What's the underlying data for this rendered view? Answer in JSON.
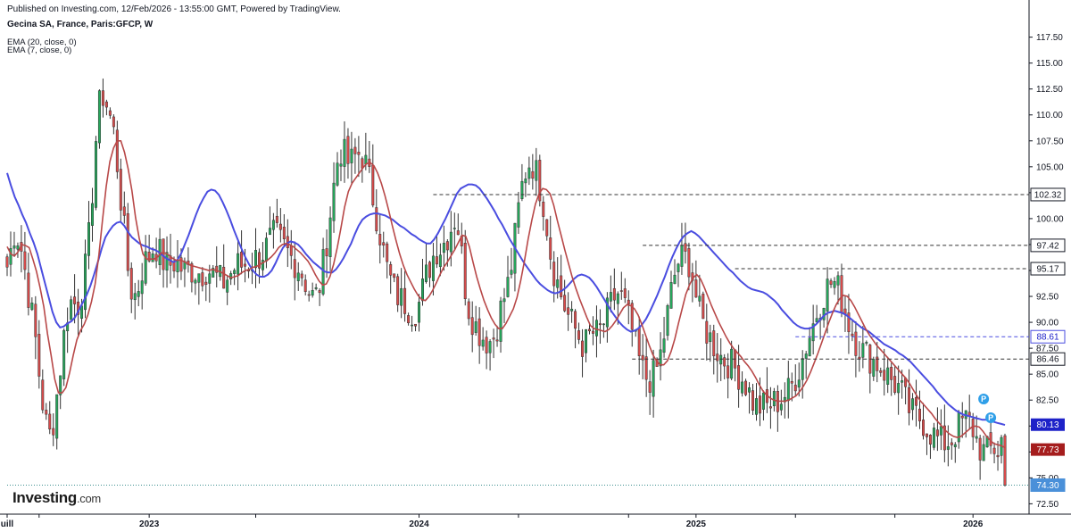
{
  "header": {
    "published": "Published on Investing.com, 12/Feb/2026 - 13:55:00 GMT, Powered by TradingView.",
    "symbol": "Gecina SA, France, Paris:GFCP, W",
    "ema20": "EMA (20, close, 0)",
    "ema7": "EMA (7, close, 0)"
  },
  "logo": {
    "name": "Investing",
    "suffix": ".com"
  },
  "colors": {
    "up": "#26a65b",
    "down": "#d94b4b",
    "ema20": "#4a4de0",
    "ema7": "#b84848",
    "grid": "#d9dce3"
  },
  "chart_data": {
    "type": "candlestick",
    "timeframe": "W",
    "y_axis": {
      "ticks": [
        "117.50",
        "115.00",
        "112.50",
        "110.00",
        "107.50",
        "105.00",
        "102.50",
        "100.00",
        "97.50",
        "95.00",
        "92.50",
        "90.00",
        "87.50",
        "85.00",
        "82.50",
        "80.00",
        "77.50",
        "75.00",
        "72.50"
      ],
      "min": 71.5,
      "max": 118.5
    },
    "x_axis": {
      "ticks": [
        {
          "label": "uill",
          "x": 0
        },
        {
          "label": "",
          "x": 9
        },
        {
          "label": "2023",
          "x": 40
        },
        {
          "label": "",
          "x": 70
        },
        {
          "label": "2024",
          "x": 116
        },
        {
          "label": "",
          "x": 144
        },
        {
          "label": "",
          "x": 175
        },
        {
          "label": "2025",
          "x": 194
        },
        {
          "label": "",
          "x": 222
        },
        {
          "label": "",
          "x": 250
        },
        {
          "label": "2026",
          "x": 272
        }
      ],
      "bars": 282
    },
    "levels": [
      {
        "value": 102.32,
        "label": "102.32",
        "from_bar": 120,
        "style": "dashed"
      },
      {
        "value": 97.42,
        "label": "97.42",
        "from_bar": 179,
        "style": "dashed"
      },
      {
        "value": 95.17,
        "label": "95.17",
        "from_bar": 205,
        "style": "dashed"
      },
      {
        "value": 88.61,
        "label": "88.61",
        "from_bar": 222,
        "style": "dashed-blue"
      },
      {
        "value": 86.46,
        "label": "86.46",
        "from_bar": 176,
        "style": "dashed"
      },
      {
        "value": 74.3,
        "label": "74.30",
        "from_bar": 0,
        "style": "dotted-teal"
      }
    ],
    "badges": [
      {
        "value": 80.13,
        "label": "80.13",
        "color": "#1e22c8"
      },
      {
        "value": 77.73,
        "label": "77.73",
        "color": "#a51d1d"
      }
    ],
    "markers": [
      {
        "label": "P",
        "bar": 275,
        "value": 82.6
      },
      {
        "label": "P",
        "bar": 277,
        "value": 80.8
      }
    ],
    "series": [
      {
        "name": "EMA (20, close, 0)",
        "color": "#4a4de0",
        "values": [
          104.4,
          103.2,
          102.1,
          101.3,
          100.4,
          99.6,
          98.6,
          97.7,
          96.6,
          95.2,
          93.8,
          92.4,
          91.0,
          90.0,
          89.5,
          89.6,
          89.9,
          90.1,
          90.5,
          91.2,
          91.9,
          92.6,
          93.5,
          94.6,
          95.8,
          97.1,
          98.2,
          98.8,
          99.3,
          99.6,
          99.7,
          99.3,
          98.7,
          98.2,
          97.9,
          97.6,
          97.4,
          97.3,
          97.1,
          97.0,
          96.8,
          96.5,
          96.2,
          96.0,
          95.8,
          96.0,
          96.6,
          97.5,
          98.4,
          99.4,
          100.4,
          101.3,
          102.0,
          102.6,
          102.8,
          102.7,
          102.3,
          101.6,
          100.8,
          99.9,
          98.9,
          98.0,
          97.1,
          96.3,
          95.6,
          95.0,
          94.6,
          94.4,
          94.4,
          94.6,
          95.0,
          95.7,
          96.5,
          97.2,
          97.6,
          97.8,
          97.7,
          97.5,
          97.1,
          96.6,
          96.2,
          95.8,
          95.5,
          95.2,
          94.9,
          94.8,
          94.8,
          95.1,
          95.6,
          96.2,
          96.9,
          97.6,
          98.5,
          99.3,
          99.9,
          100.2,
          100.4,
          100.5,
          100.5,
          100.4,
          100.3,
          100.1,
          99.9,
          99.6,
          99.3,
          99.1,
          98.8,
          98.5,
          98.3,
          98.0,
          97.8,
          97.6,
          97.6,
          98.0,
          98.6,
          99.3,
          100.0,
          100.8,
          101.6,
          102.4,
          102.9,
          103.1,
          103.3,
          103.3,
          103.2,
          102.9,
          102.4,
          101.9,
          101.3,
          100.7,
          100.0,
          99.4,
          98.7,
          98.0,
          97.4,
          96.8,
          96.2,
          95.6,
          95.1,
          94.6,
          94.1,
          93.7,
          93.4,
          93.1,
          92.9,
          92.8,
          92.9,
          93.1,
          93.4,
          93.8,
          94.2,
          94.5,
          94.6,
          94.5,
          94.3,
          93.9,
          93.4,
          92.8,
          92.2,
          91.6,
          91.0,
          90.5,
          90.0,
          89.6,
          89.3,
          89.1,
          89.2,
          89.4,
          89.8,
          90.3,
          91.0,
          91.8,
          92.6,
          93.5,
          94.4,
          95.4,
          96.3,
          97.1,
          97.8,
          98.3,
          98.6,
          98.8,
          98.6,
          98.3,
          97.9,
          97.5,
          97.1,
          96.7,
          96.3,
          95.9,
          95.5,
          95.1,
          94.8,
          94.4,
          94.0,
          93.7,
          93.4,
          93.2,
          93.1,
          93.0,
          92.9,
          92.7,
          92.4,
          92.1,
          91.7,
          91.2,
          90.8,
          90.4,
          90.0,
          89.7,
          89.5,
          89.4,
          89.4,
          89.5,
          89.8,
          90.2,
          90.6,
          90.9,
          91.0,
          91.1,
          91.0,
          90.9,
          90.7,
          90.4,
          90.1,
          89.8,
          89.5,
          89.3,
          89.1,
          88.8,
          88.5,
          88.2,
          87.9,
          87.7,
          87.5,
          87.3,
          87.0,
          86.8,
          86.5,
          86.2,
          85.8,
          85.4,
          85.0,
          84.6,
          84.2,
          83.8,
          83.3,
          82.9,
          82.5,
          82.1,
          81.8,
          81.5,
          81.3,
          81.1,
          81.0,
          80.9,
          80.8,
          80.7,
          80.6,
          80.6,
          80.5,
          80.4,
          80.3,
          80.2,
          80.1
        ]
      },
      {
        "name": "EMA (7, close, 0)",
        "color": "#b84848",
        "values": [
          97.3,
          96.6,
          96.4,
          96.8,
          97.5,
          97.4,
          97.2,
          96.1,
          94.9,
          93.3,
          91.5,
          88.9,
          86.8,
          84.5,
          83.2,
          83.2,
          83.7,
          85.1,
          86.8,
          88.3,
          89.2,
          89.8,
          90.7,
          92.0,
          93.7,
          96.5,
          99.9,
          103.1,
          105.5,
          106.8,
          107.5,
          107.5,
          106.4,
          104.8,
          102.7,
          100.1,
          98.1,
          96.6,
          96.1,
          96.1,
          96.1,
          96.3,
          96.7,
          96.7,
          96.5,
          96.2,
          96.0,
          96.0,
          95.9,
          95.7,
          95.5,
          95.4,
          95.3,
          95.2,
          95.1,
          95.0,
          95.1,
          95.0,
          94.9,
          94.7,
          94.5,
          94.3,
          94.4,
          94.5,
          94.8,
          95.0,
          95.1,
          95.3,
          95.4,
          95.6,
          95.8,
          96.0,
          96.3,
          96.7,
          97.2,
          97.5,
          97.6,
          97.5,
          97.3,
          97.0,
          96.7,
          96.3,
          95.9,
          95.3,
          94.6,
          94.0,
          93.6,
          93.7,
          94.4,
          95.6,
          97.2,
          99.1,
          101.1,
          102.6,
          103.4,
          103.9,
          104.4,
          104.9,
          105.3,
          105.4,
          105.1,
          104.4,
          103.4,
          102.2,
          100.8,
          99.3,
          97.9,
          96.6,
          95.5,
          94.6,
          93.9,
          93.2,
          92.6,
          92.2,
          92.1,
          92.5,
          93.1,
          93.8,
          94.6,
          95.3,
          95.8,
          96.4,
          97.0,
          97.7,
          98.4,
          98.3,
          97.3,
          95.8,
          94.4,
          93.2,
          92.1,
          91.2,
          90.4,
          89.8,
          89.4,
          89.4,
          89.9,
          90.6,
          91.3,
          92.4,
          94.0,
          95.9,
          98.0,
          99.8,
          101.4,
          102.4,
          102.9,
          102.8,
          102.4,
          101.3,
          99.8,
          98.4,
          97.0,
          95.7,
          94.4,
          93.3,
          92.3,
          91.4,
          90.5,
          89.7,
          89.4,
          89.3,
          89.2,
          89.1,
          89.3,
          89.7,
          90.2,
          90.8,
          91.4,
          91.7,
          91.6,
          91.3,
          90.7,
          89.8,
          88.8,
          87.8,
          86.9,
          86.3,
          85.9,
          85.9,
          86.3,
          87.2,
          88.4,
          89.9,
          91.3,
          92.7,
          93.6,
          94.3,
          94.6,
          94.2,
          93.4,
          92.5,
          91.6,
          90.8,
          90.0,
          89.3,
          88.6,
          88.0,
          87.5,
          87.1,
          86.7,
          86.2,
          85.8,
          85.3,
          84.7,
          84.0,
          83.4,
          83.0,
          82.7,
          82.5,
          82.4,
          82.4,
          82.4,
          82.5,
          82.7,
          82.9,
          83.3,
          83.8,
          84.4,
          85.2,
          86.1,
          87.0,
          88.0,
          89.0,
          90.0,
          90.9,
          91.7,
          92.3,
          92.6,
          92.5,
          92.1,
          91.5,
          90.8,
          90.1,
          89.4,
          88.8,
          88.3,
          87.8,
          87.4,
          87.0,
          86.6,
          86.2,
          85.8,
          85.4,
          85.0,
          84.6,
          84.1,
          83.5,
          82.9,
          82.4,
          82.0,
          81.6,
          81.2,
          80.7,
          80.3,
          79.9,
          79.5,
          79.2,
          79.0,
          78.9,
          79.0,
          79.3,
          79.6,
          79.9,
          80.0,
          79.9,
          79.5,
          79.0,
          78.6,
          78.3,
          78.2,
          78.1,
          77.9
        ]
      }
    ]
  }
}
